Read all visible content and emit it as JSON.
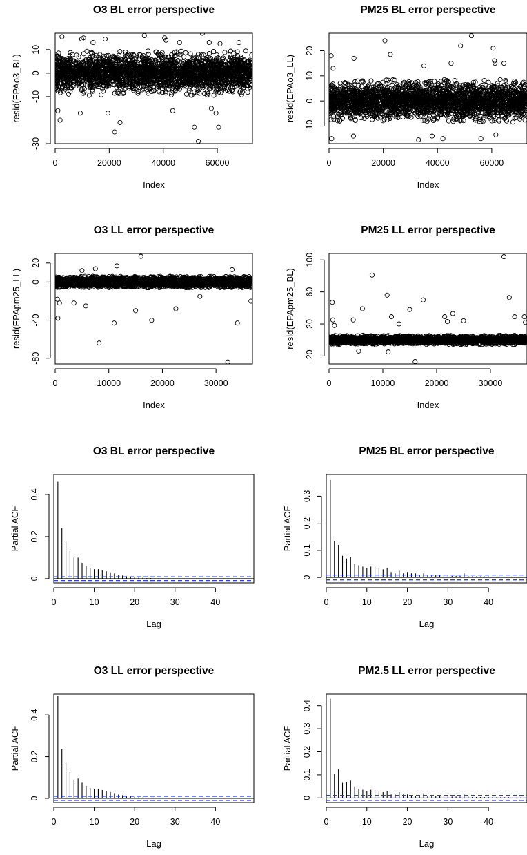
{
  "chart_data": [
    {
      "type": "scatter",
      "title": "O3 BL error perspective",
      "xlabel": "Index",
      "ylabel": "resid(EPAo3_BL)",
      "xlim": [
        0,
        73000
      ],
      "ylim": [
        -30,
        17
      ],
      "x_ticks": [
        0,
        20000,
        40000,
        60000
      ],
      "y_ticks": [
        -30,
        -10,
        0,
        10
      ],
      "n_points": 73000,
      "band": {
        "sd": 3.6,
        "clip": 9.5
      },
      "outliers": [
        [
          2500,
          15.5
        ],
        [
          9800,
          14.5
        ],
        [
          10500,
          15
        ],
        [
          14000,
          13
        ],
        [
          18500,
          14.5
        ],
        [
          33000,
          16
        ],
        [
          40500,
          15
        ],
        [
          41000,
          14
        ],
        [
          46000,
          13
        ],
        [
          54500,
          17
        ],
        [
          57000,
          13
        ],
        [
          61000,
          12.5
        ],
        [
          68000,
          13
        ],
        [
          1000,
          -16
        ],
        [
          1800,
          -20
        ],
        [
          9300,
          -17
        ],
        [
          19500,
          -17
        ],
        [
          22000,
          -25
        ],
        [
          24000,
          -21
        ],
        [
          43500,
          -16
        ],
        [
          51500,
          -23
        ],
        [
          53000,
          -29
        ],
        [
          57800,
          -15
        ],
        [
          59500,
          -17
        ],
        [
          60500,
          -23
        ]
      ]
    },
    {
      "type": "scatter",
      "title": "PM25 BL error perspective",
      "xlabel": "Index",
      "ylabel": "resid(EPAo3_LL)",
      "xlim": [
        0,
        73000
      ],
      "ylim": [
        -17,
        27
      ],
      "x_ticks": [
        0,
        20000,
        40000,
        60000
      ],
      "y_ticks": [
        -10,
        0,
        10,
        20
      ],
      "n_points": 73000,
      "band": {
        "sd": 3.3,
        "clip": 8.5
      },
      "outliers": [
        [
          800,
          18
        ],
        [
          1500,
          13
        ],
        [
          9200,
          17
        ],
        [
          20600,
          24
        ],
        [
          22600,
          18.5
        ],
        [
          35000,
          14
        ],
        [
          45000,
          15
        ],
        [
          48500,
          22
        ],
        [
          52500,
          26
        ],
        [
          60500,
          21
        ],
        [
          61000,
          16
        ],
        [
          61200,
          15
        ],
        [
          64500,
          15
        ],
        [
          1000,
          -15
        ],
        [
          9000,
          -14
        ],
        [
          33000,
          -15.5
        ],
        [
          38000,
          -14
        ],
        [
          42000,
          -15
        ],
        [
          56000,
          -15
        ],
        [
          61500,
          -13.5
        ]
      ]
    },
    {
      "type": "scatter",
      "title": "O3 LL error perspective",
      "xlabel": "Index",
      "ylabel": "resid(EPApm25_LL)",
      "xlim": [
        0,
        36800
      ],
      "ylim": [
        -86,
        30
      ],
      "x_ticks": [
        0,
        10000,
        20000,
        30000
      ],
      "y_ticks": [
        -80,
        -40,
        0,
        20
      ],
      "n_points": 36800,
      "band": {
        "sd": 2.5,
        "clip": 6
      },
      "outliers": [
        [
          16000,
          27
        ],
        [
          7500,
          14
        ],
        [
          11500,
          17
        ],
        [
          5000,
          12
        ],
        [
          33000,
          13
        ],
        [
          400,
          -18
        ],
        [
          800,
          -22
        ],
        [
          500,
          -38
        ],
        [
          3500,
          -22
        ],
        [
          5700,
          -25
        ],
        [
          8200,
          -64
        ],
        [
          11000,
          -43
        ],
        [
          15000,
          -30
        ],
        [
          18000,
          -40
        ],
        [
          22500,
          -28
        ],
        [
          32200,
          -84
        ],
        [
          34000,
          -43
        ],
        [
          36500,
          -20
        ],
        [
          27000,
          -15
        ]
      ]
    },
    {
      "type": "scatter",
      "title": "PM25 LL error perspective",
      "xlabel": "Index",
      "ylabel": "resid(EPApm25_BL)",
      "xlim": [
        0,
        36800
      ],
      "ylim": [
        -30,
        108
      ],
      "x_ticks": [
        0,
        10000,
        20000,
        30000
      ],
      "y_ticks": [
        -20,
        20,
        60,
        100
      ],
      "n_points": 36800,
      "band": {
        "sd": 2.2,
        "clip": 6
      },
      "outliers": [
        [
          600,
          47
        ],
        [
          700,
          25
        ],
        [
          1000,
          18
        ],
        [
          4500,
          25
        ],
        [
          6200,
          39
        ],
        [
          8000,
          81
        ],
        [
          10800,
          56
        ],
        [
          11600,
          29
        ],
        [
          13000,
          20
        ],
        [
          15000,
          38
        ],
        [
          17500,
          50
        ],
        [
          21500,
          29
        ],
        [
          22000,
          23
        ],
        [
          23000,
          33
        ],
        [
          25000,
          24
        ],
        [
          32500,
          104
        ],
        [
          33500,
          53
        ],
        [
          34500,
          29
        ],
        [
          36300,
          29
        ],
        [
          36500,
          22
        ],
        [
          16000,
          -27
        ],
        [
          11000,
          -15
        ],
        [
          5500,
          -14
        ]
      ]
    },
    {
      "type": "bar",
      "title": "O3 BL error perspective",
      "xlabel": "Lag",
      "ylabel": "Partial ACF",
      "xlim": [
        0,
        49.5
      ],
      "ylim": [
        -0.02,
        0.495
      ],
      "x_ticks": [
        0,
        10,
        20,
        30,
        40
      ],
      "y_ticks": [
        0.0,
        0.2,
        0.4
      ],
      "ci": 0.009,
      "values": [
        0.46,
        0.24,
        0.175,
        0.13,
        0.1,
        0.1,
        0.075,
        0.06,
        0.05,
        0.045,
        0.045,
        0.04,
        0.035,
        0.03,
        0.025,
        0.018,
        0.015,
        0.012,
        0.01,
        0.008,
        0.005,
        0.004,
        0.003,
        0.003,
        0.002,
        0.002,
        0.002,
        0.001,
        0.001,
        0.001,
        0.001,
        0.001,
        0.001,
        0.001,
        0.001,
        0.001,
        0.001,
        0.001,
        0.001,
        0.001,
        0.001,
        0.001,
        0.001,
        0.001,
        0.001,
        0.001,
        0.001,
        0.001
      ]
    },
    {
      "type": "bar",
      "title": "PM25 BL error perspective",
      "xlabel": "Lag",
      "ylabel": "Partial ACF",
      "xlim": [
        0,
        49.5
      ],
      "ylim": [
        -0.02,
        0.38
      ],
      "x_ticks": [
        0,
        10,
        20,
        30,
        40
      ],
      "y_ticks": [
        0.0,
        0.1,
        0.2,
        0.3
      ],
      "ci": 0.009,
      "values": [
        0.36,
        0.135,
        0.12,
        0.08,
        0.07,
        0.075,
        0.05,
        0.045,
        0.04,
        0.035,
        0.04,
        0.04,
        0.035,
        0.03,
        0.035,
        0.02,
        0.015,
        0.025,
        0.015,
        0.02,
        0.015,
        0.015,
        0.01,
        0.015,
        0.01,
        0.008,
        0.008,
        0.008,
        0.008,
        0.008,
        0.006,
        0.006,
        0.006,
        0.015,
        0.006,
        0.004,
        0.004,
        0.004,
        0.004,
        0.004,
        0.003,
        0.003,
        0.003,
        0.003,
        0.003,
        0.003,
        0.003,
        0.003
      ]
    },
    {
      "type": "bar",
      "title": "O3 LL error perspective",
      "xlabel": "Lag",
      "ylabel": "Partial ACF",
      "xlim": [
        0,
        49.5
      ],
      "ylim": [
        -0.02,
        0.5
      ],
      "x_ticks": [
        0,
        10,
        20,
        30,
        40
      ],
      "y_ticks": [
        0.0,
        0.2,
        0.4
      ],
      "ci": 0.01,
      "values": [
        0.49,
        0.235,
        0.17,
        0.125,
        0.09,
        0.095,
        0.075,
        0.06,
        0.05,
        0.045,
        0.045,
        0.04,
        0.035,
        0.03,
        0.025,
        0.018,
        0.015,
        0.012,
        0.01,
        0.008,
        0.005,
        0.004,
        0.003,
        0.003,
        0.002,
        0.002,
        0.002,
        0.001,
        0.001,
        0.001,
        0.001,
        0.001,
        0.001,
        0.001,
        0.001,
        0.001,
        0.001,
        0.001,
        0.001,
        0.001,
        0.001,
        0.001,
        0.001,
        0.001,
        0.001,
        0.001,
        0.001,
        0.001
      ]
    },
    {
      "type": "bar",
      "title": "PM2.5 LL error perspective",
      "xlabel": "Lag",
      "ylabel": "Partial ACF",
      "xlim": [
        0,
        49.5
      ],
      "ylim": [
        -0.02,
        0.45
      ],
      "x_ticks": [
        0,
        10,
        20,
        30,
        40
      ],
      "y_ticks": [
        0.0,
        0.1,
        0.2,
        0.3,
        0.4
      ],
      "ci": 0.011,
      "values": [
        0.43,
        0.105,
        0.125,
        0.065,
        0.07,
        0.075,
        0.05,
        0.04,
        0.035,
        0.03,
        0.035,
        0.035,
        0.03,
        0.025,
        0.03,
        0.015,
        0.015,
        0.025,
        0.015,
        0.015,
        0.01,
        0.01,
        0.01,
        0.02,
        0.01,
        0.008,
        0.008,
        0.008,
        0.008,
        0.008,
        0.006,
        0.006,
        0.006,
        0.015,
        0.006,
        0.004,
        0.004,
        0.004,
        0.004,
        0.004,
        0.003,
        0.003,
        0.003,
        0.003,
        0.003,
        0.003,
        0.003,
        0.003
      ]
    }
  ]
}
